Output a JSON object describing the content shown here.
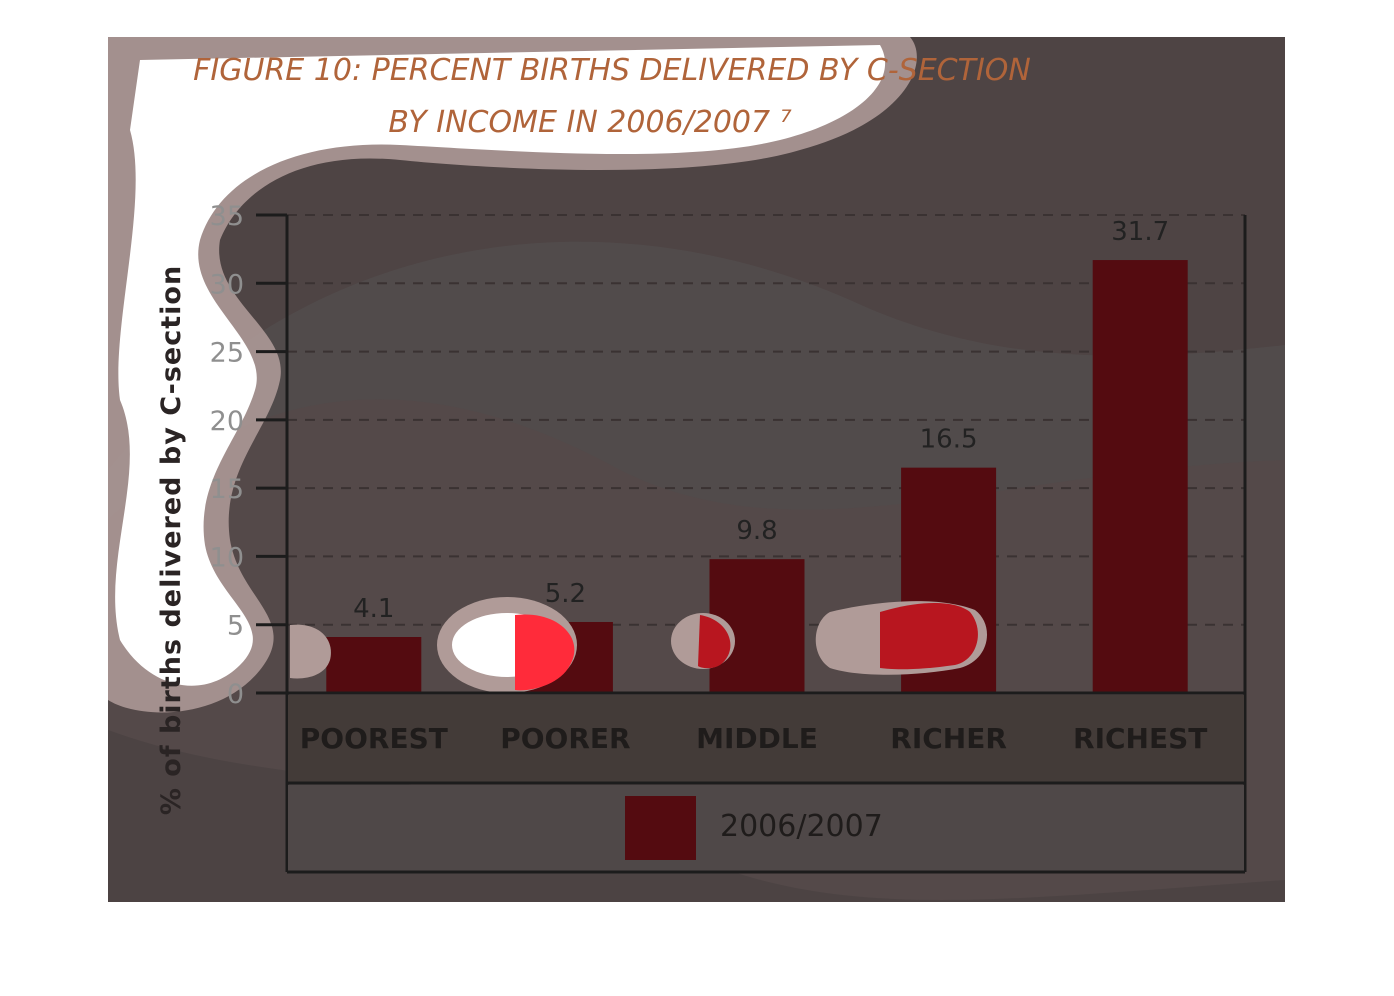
{
  "chart_data": {
    "type": "bar",
    "title_lines": [
      "FIGURE 10: PERCENT BIRTHS DELIVERED BY C-SECTION",
      "BY INCOME IN 2006/2007 ⁷"
    ],
    "ylabel": "% of births delivered by C-section",
    "categories": [
      "POOREST",
      "POORER",
      "MIDDLE",
      "RICHER",
      "RICHEST"
    ],
    "series": [
      {
        "name": "2006/2007",
        "values": [
          4.1,
          5.2,
          9.8,
          16.5,
          31.7
        ],
        "value_labels": [
          "4.1",
          "5.2",
          "9.8",
          "16.5",
          "31.7"
        ],
        "color": "#540b10"
      }
    ],
    "yticks": [
      "0",
      "5",
      "10",
      "15",
      "20",
      "25",
      "30",
      "35"
    ],
    "ylim": [
      0,
      35
    ],
    "grid": true,
    "legend_position": "bottom",
    "colors": {
      "background": "#4e4444",
      "title": "#b0643a",
      "bar": "#540b10",
      "highlight": "#ff2b3a"
    }
  }
}
